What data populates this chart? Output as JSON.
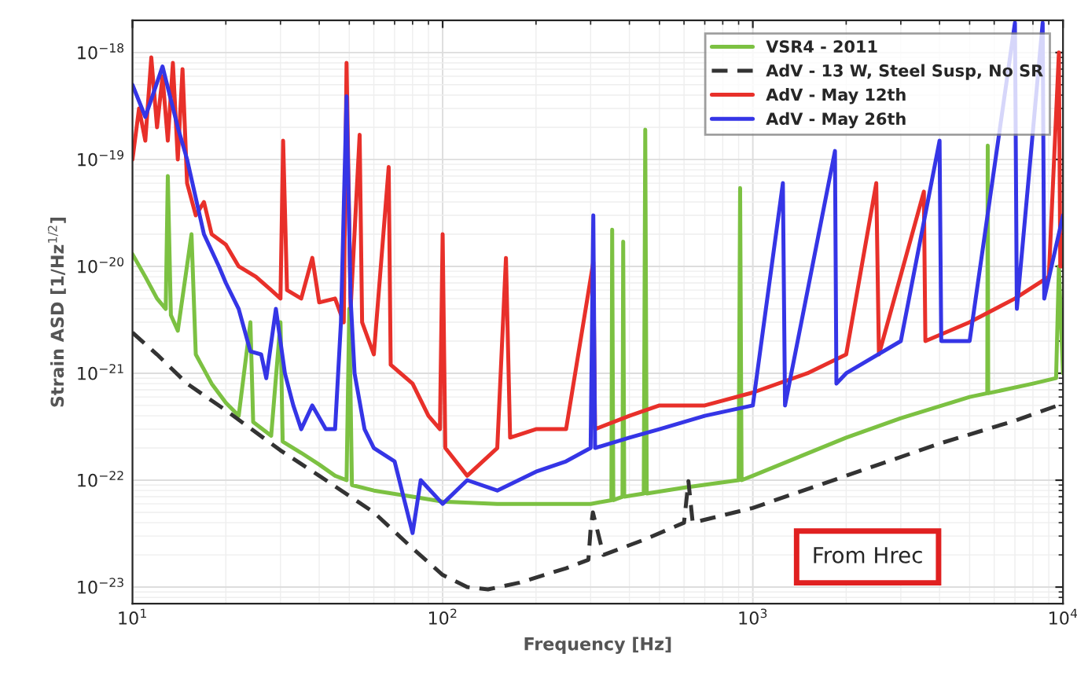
{
  "chart_data": {
    "type": "line",
    "xlabel": "Frequency [Hz]",
    "ylabel": "Strain ASD [1/Hz$^{1/2}$]",
    "log": "xy",
    "grid": true,
    "legend": "top right",
    "xlim": [
      10,
      10000
    ],
    "ylim": [
      7e-24,
      2e-18
    ],
    "xticks": [
      {
        "value": 10,
        "label": "10$^{1}$"
      },
      {
        "value": 100,
        "label": "10$^{2}$"
      },
      {
        "value": 1000,
        "label": "10$^{3}$"
      },
      {
        "value": 10000,
        "label": "10$^{4}$"
      }
    ],
    "yticks": [
      {
        "value": 1e-23,
        "label": "10$^{−23}$"
      },
      {
        "value": 1e-22,
        "label": "10$^{−22}$"
      },
      {
        "value": 1e-21,
        "label": "10$^{−21}$"
      },
      {
        "value": 1e-20,
        "label": "10$^{−20}$"
      },
      {
        "value": 1e-19,
        "label": "10$^{−19}$"
      },
      {
        "value": 1e-18,
        "label": "10$^{−18}$"
      }
    ],
    "annotations": [
      "From Hrec"
    ],
    "series": [
      {
        "name": "VSR4 - 2011",
        "color": "#7cc142",
        "line_style": "solid",
        "x": [
          10,
          11,
          12,
          12.8,
          13,
          13.3,
          14,
          15.5,
          16,
          18,
          20,
          22,
          24,
          24.5,
          28,
          30,
          30.5,
          35,
          40,
          45,
          49,
          50,
          51,
          60,
          80,
          100,
          150,
          200,
          300,
          350,
          352,
          355,
          380,
          382,
          385,
          445,
          450,
          455,
          600,
          900,
          910,
          920,
          1000,
          2000,
          3000,
          5000,
          5700,
          5720,
          5740,
          8000,
          9500,
          9700,
          10000
        ],
        "values": [
          1.3e-20,
          8e-21,
          5e-21,
          4e-21,
          7e-20,
          3.5e-21,
          2.5e-21,
          2e-20,
          1.5e-21,
          8e-22,
          5.3e-22,
          4e-22,
          3e-21,
          3.5e-22,
          2.6e-22,
          3e-21,
          2.3e-22,
          1.8e-22,
          1.4e-22,
          1.1e-22,
          1e-22,
          4e-21,
          9e-23,
          8e-23,
          7e-23,
          6.3e-23,
          6e-23,
          6e-23,
          6e-23,
          6.5e-23,
          2.2e-20,
          6.5e-23,
          7e-23,
          1.7e-20,
          7e-23,
          7.5e-23,
          1.9e-19,
          7.5e-23,
          8.5e-23,
          1e-22,
          5.4e-20,
          1e-22,
          1.1e-22,
          2.5e-22,
          3.8e-22,
          6e-22,
          6.5e-22,
          1.35e-19,
          6.5e-22,
          8e-22,
          9e-22,
          1e-20,
          1e-21
        ]
      },
      {
        "name": "AdV - 13 W, Steel Susp, No SR",
        "color": "#333333",
        "line_style": "dashed",
        "x": [
          10,
          12,
          15,
          20,
          30,
          40,
          60,
          80,
          100,
          120,
          140,
          177,
          250,
          295,
          300,
          305,
          330,
          450,
          600,
          620,
          640,
          1000,
          2000,
          4000,
          7000,
          10000
        ],
        "values": [
          2.4e-21,
          1.5e-21,
          8e-22,
          4.5e-22,
          1.9e-22,
          1.1e-22,
          5e-23,
          2.3e-23,
          1.3e-23,
          1e-23,
          9.5e-24,
          1.1e-23,
          1.5e-23,
          1.8e-23,
          3.5e-23,
          5e-23,
          2e-23,
          2.8e-23,
          4e-23,
          9.8e-23,
          4e-23,
          5.5e-23,
          1.1e-22,
          2.2e-22,
          3.6e-22,
          5.2e-22
        ]
      },
      {
        "name": "AdV - May 12th",
        "color": "#e8302a",
        "line_style": "solid",
        "x": [
          10,
          10.5,
          11,
          11.5,
          12,
          12.5,
          13,
          13.5,
          14,
          14.5,
          15,
          16,
          17,
          18,
          20,
          22,
          25,
          28,
          30,
          30.6,
          31.5,
          35,
          38,
          40,
          45,
          48,
          49,
          50.5,
          54,
          55,
          60,
          67,
          68,
          80,
          90,
          98,
          100,
          102,
          120,
          150,
          160,
          165,
          200,
          250,
          306,
          310,
          400,
          500,
          700,
          1000,
          1500,
          2000,
          2500,
          2550,
          3560,
          3600,
          5000,
          7000,
          9000,
          9700,
          9800,
          10000
        ],
        "values": [
          1e-19,
          3e-19,
          1.5e-19,
          9e-19,
          2e-19,
          6e-19,
          1.5e-19,
          8e-19,
          1e-19,
          7e-19,
          6e-20,
          3e-20,
          4e-20,
          2e-20,
          1.6e-20,
          1e-20,
          8e-21,
          6e-21,
          5e-21,
          1.5e-19,
          6e-21,
          5e-21,
          1.2e-20,
          4.6e-21,
          5e-21,
          3e-21,
          8e-19,
          4e-21,
          1.7e-19,
          3e-21,
          1.5e-21,
          8.5e-20,
          1.2e-21,
          8e-22,
          4e-22,
          3e-22,
          2e-20,
          2e-22,
          1.1e-22,
          2e-22,
          1.2e-20,
          2.5e-22,
          3e-22,
          3e-22,
          1.1e-20,
          3e-22,
          4e-22,
          5e-22,
          5e-22,
          6.6e-22,
          1e-21,
          1.5e-21,
          6e-20,
          1.5e-21,
          5e-20,
          2e-21,
          3e-21,
          5e-21,
          8e-21,
          1e-18,
          1e-20,
          1e-20
        ]
      },
      {
        "name": "AdV - May 26th",
        "color": "#3535e6",
        "line_style": "solid",
        "x": [
          10,
          11,
          12.5,
          14,
          15,
          17,
          19,
          20,
          22,
          24,
          26,
          27,
          29,
          31,
          33,
          35,
          38,
          42,
          45,
          47,
          49,
          50.5,
          52,
          56,
          60,
          70,
          80,
          85,
          100,
          120,
          150,
          200,
          250,
          300,
          306,
          310,
          400,
          500,
          700,
          1000,
          1250,
          1270,
          1840,
          1860,
          2000,
          3000,
          4000,
          4050,
          5000,
          7000,
          7100,
          8600,
          8700,
          10000
        ],
        "values": [
          5e-19,
          2.5e-19,
          7.4e-19,
          2e-19,
          1e-19,
          2e-20,
          1e-20,
          7e-21,
          4e-21,
          1.6e-21,
          1.5e-21,
          9e-22,
          4e-21,
          1e-21,
          5e-22,
          3e-22,
          5e-22,
          3e-22,
          3e-22,
          3e-21,
          3.9e-19,
          5e-21,
          1e-21,
          3e-22,
          2e-22,
          1.5e-22,
          3.2e-23,
          1e-22,
          6e-23,
          1e-22,
          8e-23,
          1.2e-22,
          1.5e-22,
          2e-22,
          3e-20,
          2e-22,
          2.5e-22,
          3e-22,
          4e-22,
          5e-22,
          6e-20,
          5e-22,
          1.2e-19,
          8e-22,
          1e-21,
          2e-21,
          1.5e-19,
          2e-21,
          2e-21,
          1.9e-18,
          4e-21,
          1.9e-18,
          5e-21,
          3e-20
        ]
      }
    ]
  }
}
